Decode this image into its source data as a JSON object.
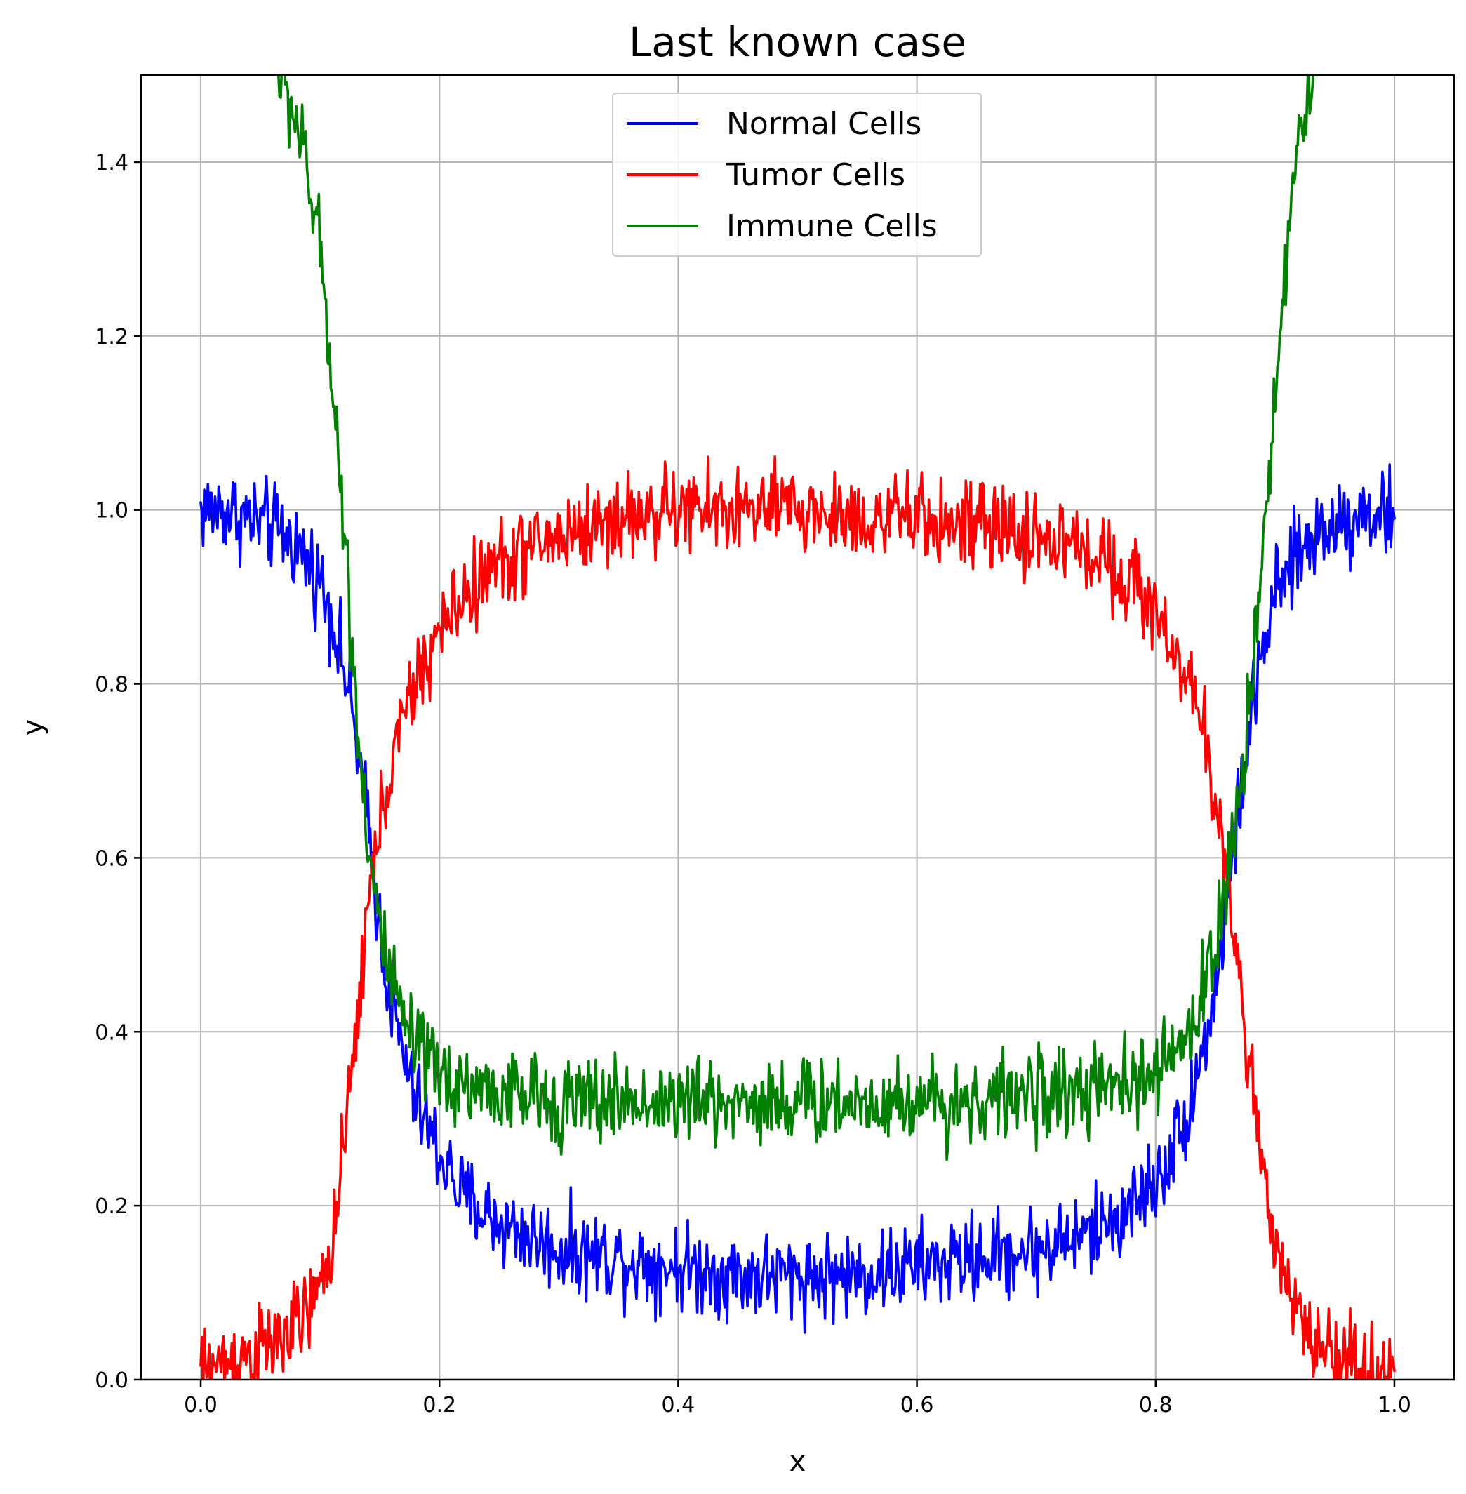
{
  "chart_data": {
    "type": "line",
    "title": "Last known case",
    "xlabel": "x",
    "ylabel": "y",
    "xlim": [
      -0.05,
      1.05
    ],
    "ylim": [
      0.0,
      1.5
    ],
    "xticks": [
      0.0,
      0.2,
      0.4,
      0.6,
      0.8,
      1.0
    ],
    "xtick_labels": [
      "0.0",
      "0.2",
      "0.4",
      "0.6",
      "0.8",
      "1.0"
    ],
    "yticks": [
      0.0,
      0.2,
      0.4,
      0.6,
      0.8,
      1.0,
      1.2,
      1.4
    ],
    "ytick_labels": [
      "0.0",
      "0.2",
      "0.4",
      "0.6",
      "0.8",
      "1.0",
      "1.2",
      "1.4"
    ],
    "grid": true,
    "legend_position": "top-center",
    "series": [
      {
        "name": "Normal Cells",
        "color": "#0000ff",
        "x": [
          0.0,
          0.02,
          0.04,
          0.06,
          0.08,
          0.1,
          0.11,
          0.12,
          0.13,
          0.14,
          0.15,
          0.16,
          0.17,
          0.18,
          0.2,
          0.22,
          0.25,
          0.3,
          0.35,
          0.4,
          0.45,
          0.5,
          0.55,
          0.6,
          0.65,
          0.7,
          0.75,
          0.78,
          0.8,
          0.82,
          0.83,
          0.84,
          0.85,
          0.86,
          0.87,
          0.88,
          0.89,
          0.9,
          0.92,
          0.94,
          0.96,
          0.98,
          1.0
        ],
        "y": [
          1.0,
          1.0,
          0.99,
          0.98,
          0.96,
          0.92,
          0.88,
          0.82,
          0.74,
          0.64,
          0.52,
          0.43,
          0.37,
          0.32,
          0.26,
          0.21,
          0.18,
          0.15,
          0.14,
          0.13,
          0.12,
          0.12,
          0.12,
          0.13,
          0.14,
          0.15,
          0.17,
          0.2,
          0.23,
          0.28,
          0.33,
          0.38,
          0.45,
          0.55,
          0.66,
          0.76,
          0.84,
          0.9,
          0.95,
          0.98,
          0.99,
          1.0,
          0.99
        ]
      },
      {
        "name": "Tumor Cells",
        "color": "#ff0000",
        "x": [
          0.0,
          0.02,
          0.04,
          0.06,
          0.08,
          0.1,
          0.11,
          0.12,
          0.13,
          0.14,
          0.15,
          0.16,
          0.17,
          0.18,
          0.2,
          0.22,
          0.25,
          0.3,
          0.35,
          0.4,
          0.45,
          0.5,
          0.55,
          0.6,
          0.65,
          0.7,
          0.75,
          0.78,
          0.8,
          0.82,
          0.83,
          0.84,
          0.85,
          0.86,
          0.87,
          0.88,
          0.89,
          0.9,
          0.92,
          0.94,
          0.96,
          0.98,
          1.0
        ],
        "y": [
          0.01,
          0.02,
          0.03,
          0.04,
          0.06,
          0.1,
          0.16,
          0.26,
          0.4,
          0.54,
          0.64,
          0.71,
          0.76,
          0.8,
          0.86,
          0.9,
          0.94,
          0.97,
          0.99,
          1.0,
          1.0,
          1.0,
          0.99,
          0.99,
          0.98,
          0.97,
          0.95,
          0.92,
          0.88,
          0.83,
          0.79,
          0.74,
          0.67,
          0.58,
          0.47,
          0.35,
          0.23,
          0.14,
          0.07,
          0.04,
          0.02,
          0.01,
          0.01
        ]
      },
      {
        "name": "Immune Cells",
        "color": "#008000",
        "x": [
          0.065,
          0.08,
          0.09,
          0.1,
          0.11,
          0.12,
          0.13,
          0.14,
          0.15,
          0.16,
          0.17,
          0.18,
          0.2,
          0.22,
          0.25,
          0.3,
          0.35,
          0.4,
          0.45,
          0.5,
          0.55,
          0.6,
          0.65,
          0.7,
          0.75,
          0.78,
          0.8,
          0.82,
          0.83,
          0.84,
          0.85,
          0.86,
          0.87,
          0.88,
          0.89,
          0.9,
          0.91,
          0.92,
          0.935
        ],
        "y": [
          1.5,
          1.45,
          1.38,
          1.3,
          1.16,
          0.98,
          0.78,
          0.62,
          0.52,
          0.45,
          0.41,
          0.38,
          0.35,
          0.34,
          0.33,
          0.32,
          0.32,
          0.32,
          0.32,
          0.32,
          0.32,
          0.32,
          0.32,
          0.33,
          0.33,
          0.34,
          0.35,
          0.38,
          0.41,
          0.45,
          0.5,
          0.57,
          0.67,
          0.8,
          0.96,
          1.14,
          1.3,
          1.43,
          1.5
        ]
      }
    ]
  }
}
